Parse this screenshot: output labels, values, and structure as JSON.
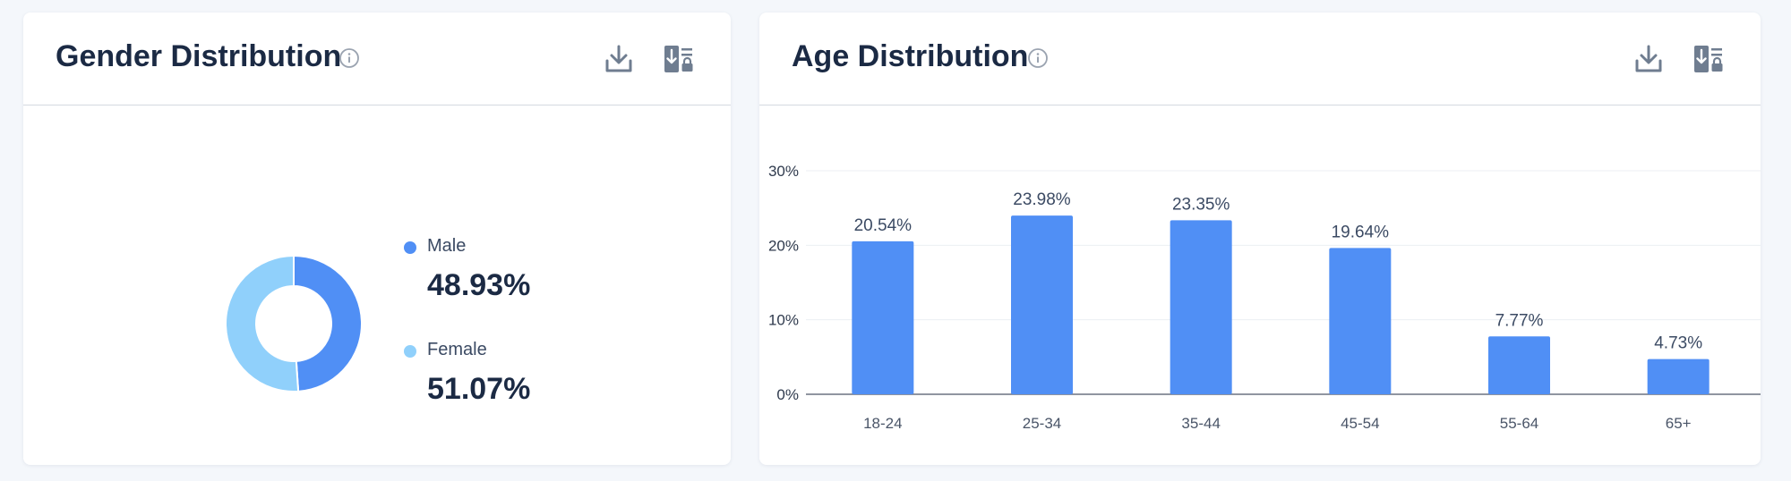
{
  "colors": {
    "male": "#508ff5",
    "female": "#90d0fb",
    "bar": "#508ff5",
    "title": "#1b2a44",
    "muted": "#5a6577",
    "icon": "#6f7d90"
  },
  "gender_card": {
    "title": "Gender Distribution",
    "icons": [
      "info-icon",
      "download-icon",
      "export-lock-icon"
    ],
    "legend": [
      {
        "label": "Male",
        "value_text": "48.93%"
      },
      {
        "label": "Female",
        "value_text": "51.07%"
      }
    ]
  },
  "age_card": {
    "title": "Age Distribution",
    "icons": [
      "info-icon",
      "download-icon",
      "export-lock-icon"
    ]
  },
  "chart_data": [
    {
      "type": "pie",
      "style": "donut",
      "title": "Gender Distribution",
      "categories": [
        "Male",
        "Female"
      ],
      "values": [
        48.93,
        51.07
      ],
      "legend_position": "right"
    },
    {
      "type": "bar",
      "title": "Age Distribution",
      "categories": [
        "18-24",
        "25-34",
        "35-44",
        "45-54",
        "55-64",
        "65+"
      ],
      "values": [
        20.54,
        23.98,
        23.35,
        19.64,
        7.77,
        4.73
      ],
      "data_labels": [
        "20.54%",
        "23.98%",
        "23.35%",
        "19.64%",
        "7.77%",
        "4.73%"
      ],
      "ylim": [
        0,
        30
      ],
      "yticks": [
        "0%",
        "10%",
        "20%",
        "30%"
      ],
      "ytick_values": [
        0,
        10,
        20,
        30
      ],
      "grid": true,
      "xlabel": "",
      "ylabel": ""
    }
  ]
}
